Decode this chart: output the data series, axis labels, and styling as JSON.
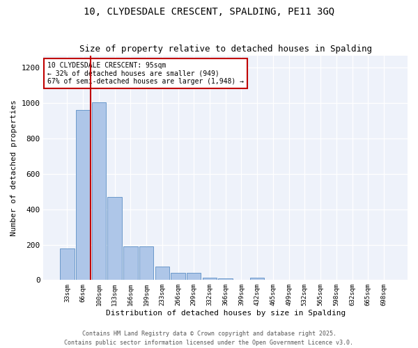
{
  "title": "10, CLYDESDALE CRESCENT, SPALDING, PE11 3GQ",
  "subtitle": "Size of property relative to detached houses in Spalding",
  "xlabel": "Distribution of detached houses by size in Spalding",
  "ylabel": "Number of detached properties",
  "categories": [
    "33sqm",
    "66sqm",
    "100sqm",
    "133sqm",
    "166sqm",
    "199sqm",
    "233sqm",
    "266sqm",
    "299sqm",
    "332sqm",
    "366sqm",
    "399sqm",
    "432sqm",
    "465sqm",
    "499sqm",
    "532sqm",
    "565sqm",
    "598sqm",
    "632sqm",
    "665sqm",
    "698sqm"
  ],
  "bar_values": [
    180,
    960,
    1005,
    470,
    190,
    190,
    75,
    40,
    40,
    15,
    8,
    3,
    15,
    0,
    0,
    0,
    0,
    0,
    0,
    0,
    0
  ],
  "bar_color": "#aec6e8",
  "bar_edge_color": "#5b8ec4",
  "highlight_color": "#c00000",
  "annotation_text": "10 CLYDESDALE CRESCENT: 95sqm\n← 32% of detached houses are smaller (949)\n67% of semi-detached houses are larger (1,948) →",
  "annotation_box_color": "#ffffff",
  "annotation_box_edge_color": "#c00000",
  "vline_x": 1.5,
  "ylim": [
    0,
    1270
  ],
  "yticks": [
    0,
    200,
    400,
    600,
    800,
    1000,
    1200
  ],
  "bg_color": "#eef2fa",
  "footer_line1": "Contains HM Land Registry data © Crown copyright and database right 2025.",
  "footer_line2": "Contains public sector information licensed under the Open Government Licence v3.0."
}
